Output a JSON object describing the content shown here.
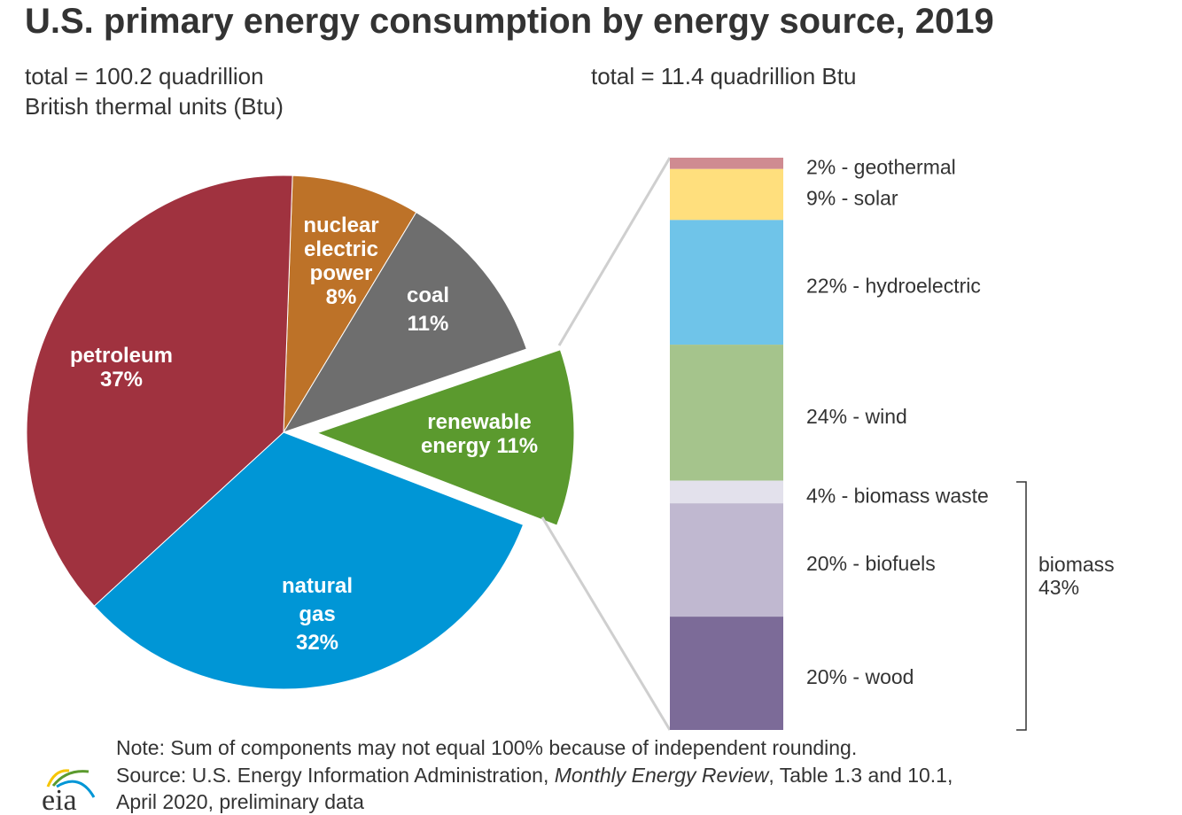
{
  "chart_data": [
    {
      "type": "pie",
      "title": "U.S. primary energy consumption by energy source, 2019",
      "subtitle": [
        "total = 100.2 quadrillion",
        "British thermal units (Btu)"
      ],
      "slices": [
        {
          "name": "nuclear electric power",
          "label_lines": [
            "nuclear",
            "electric",
            "power",
            "8%"
          ],
          "value": 8,
          "color": "#bd7228"
        },
        {
          "name": "coal",
          "label_lines": [
            "coal",
            "11%"
          ],
          "value": 11,
          "color": "#6e6e6e"
        },
        {
          "name": "renewable energy",
          "label_lines": [
            "renewable",
            "energy 11%"
          ],
          "value": 11,
          "color": "#5b9a2e",
          "exploded": true
        },
        {
          "name": "natural gas",
          "label_lines": [
            "natural",
            "gas",
            "32%"
          ],
          "value": 32,
          "color": "#0096d6"
        },
        {
          "name": "petroleum",
          "label_lines": [
            "petroleum",
            "37%"
          ],
          "value": 37,
          "color": "#a0323f"
        }
      ]
    },
    {
      "type": "bar",
      "stacked": true,
      "subtitle": "total = 11.4 quadrillion Btu",
      "segments": [
        {
          "name": "geothermal",
          "label": "2% - geothermal",
          "value": 2,
          "color": "#cf8b91"
        },
        {
          "name": "solar",
          "label": "9% - solar",
          "value": 9,
          "color": "#ffdf7d"
        },
        {
          "name": "hydroelectric",
          "label": "22% - hydroelectric",
          "value": 22,
          "color": "#6fc4e9"
        },
        {
          "name": "wind",
          "label": "24% - wind",
          "value": 24,
          "color": "#a5c48c"
        },
        {
          "name": "biomass waste",
          "label": "4% - biomass waste",
          "value": 4,
          "color": "#e3e1ec"
        },
        {
          "name": "biofuels",
          "label": "20% - biofuels",
          "value": 20,
          "color": "#c0b8d0"
        },
        {
          "name": "wood",
          "label": "20% - wood",
          "value": 20,
          "color": "#7c6b98"
        }
      ],
      "bracket": {
        "label_lines": [
          "biomass",
          "43%"
        ],
        "value": 43
      }
    }
  ],
  "notes": {
    "note": "Note: Sum of components may not equal 100% because of independent rounding.",
    "source_prefix": "Source: U.S. Energy Information Administration, ",
    "source_italic": "Monthly Energy Review",
    "source_suffix": ", Table 1.3 and 10.1,",
    "source_line2": "April 2020, preliminary data"
  },
  "logo": {
    "text": "eia"
  }
}
